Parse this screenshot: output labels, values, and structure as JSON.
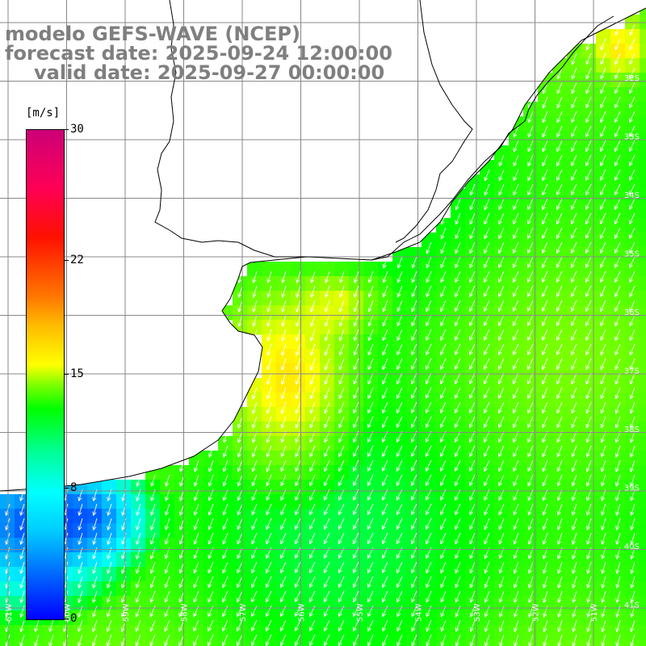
{
  "title": {
    "model": "modelo GEFS-WAVE (NCEP)",
    "forecast": "forecast date: 2025-09-24 12:00:00",
    "valid": "valid date: 2025-09-27 00:00:00"
  },
  "colorbar": {
    "unit": "[m/s]",
    "min": 0,
    "max": 30,
    "ticks": [
      "30",
      "22",
      "15",
      "8",
      "0"
    ],
    "tick_values": [
      30,
      22,
      15,
      8,
      0
    ]
  },
  "lat_labels": [
    "32S",
    "33S",
    "34S",
    "35S",
    "36S",
    "37S",
    "38S",
    "39S",
    "40S",
    "41S"
  ],
  "lon_labels": [
    "61W",
    "60W",
    "59W",
    "58W",
    "57W",
    "56W",
    "55W",
    "54W",
    "53W",
    "52W",
    "51W"
  ],
  "colors": {
    "land": "#ffffff",
    "grid": "#888888",
    "coast": "#000000",
    "arrow": "#ffffff",
    "title": "#7f7f7f"
  },
  "wind_field": {
    "speeds_fill": "green-yellow 10-17 m/s, blue 3-8 m/s near 38S coast",
    "arrow_direction": "from north-east (SW-pointing)"
  }
}
